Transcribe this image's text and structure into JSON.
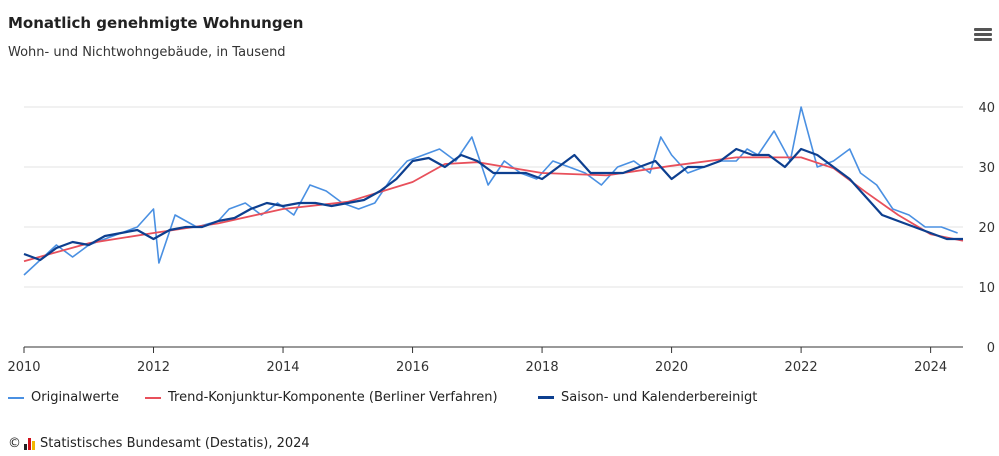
{
  "header": {
    "title": "Monatlich genehmigte Wohnungen",
    "subtitle": "Wohn- und Nichtwohngebäude, in Tausend"
  },
  "menu": {
    "icon": "hamburger-menu-icon"
  },
  "footer": {
    "copyright_symbol": "©",
    "logo_icon": "destatis-logo-icon",
    "text": "Statistisches Bundesamt (Destatis), 2024"
  },
  "chart_data": {
    "type": "line",
    "title": "Monatlich genehmigte Wohnungen",
    "subtitle": "Wohn- und Nichtwohngebäude, in Tausend",
    "xlim": [
      "2010-01",
      "2024-07"
    ],
    "ylim": [
      0,
      40
    ],
    "x_ticks": [
      "2010",
      "2012",
      "2014",
      "2016",
      "2018",
      "2020",
      "2022",
      "2024"
    ],
    "y_ticks": [
      0,
      10,
      20,
      30,
      40
    ],
    "y_axis_position": "right",
    "grid": "horizontal",
    "legend_position": "bottom",
    "colors": {
      "original": "#4a90e2",
      "trend": "#e8505b",
      "adjusted": "#0d3f8f"
    },
    "series": [
      {
        "name": "Originalwerte",
        "x": [
          "2010-01",
          "2010-07",
          "2010-10",
          "2011-01",
          "2011-04",
          "2011-07",
          "2011-10",
          "2012-01",
          "2012-02",
          "2012-05",
          "2012-09",
          "2013-01",
          "2013-03",
          "2013-06",
          "2013-09",
          "2013-12",
          "2014-03",
          "2014-06",
          "2014-09",
          "2014-12",
          "2015-03",
          "2015-06",
          "2015-09",
          "2015-12",
          "2016-03",
          "2016-06",
          "2016-09",
          "2016-12",
          "2017-03",
          "2017-06",
          "2017-09",
          "2017-12",
          "2018-03",
          "2018-06",
          "2018-09",
          "2018-12",
          "2019-03",
          "2019-06",
          "2019-09",
          "2019-11",
          "2020-01",
          "2020-04",
          "2020-07",
          "2020-10",
          "2021-01",
          "2021-03",
          "2021-05",
          "2021-08",
          "2021-11",
          "2022-01",
          "2022-04",
          "2022-07",
          "2022-10",
          "2022-12",
          "2023-03",
          "2023-06",
          "2023-09",
          "2023-12",
          "2024-03",
          "2024-06"
        ],
        "y": [
          12,
          17,
          15,
          17,
          18,
          19,
          20,
          23,
          14,
          22,
          20,
          21,
          23,
          24,
          22,
          24,
          22,
          27,
          26,
          24,
          23,
          24,
          28,
          31,
          32,
          33,
          31,
          35,
          27,
          31,
          29,
          28,
          31,
          30,
          29,
          27,
          30,
          31,
          29,
          35,
          32,
          29,
          30,
          31,
          31,
          33,
          32,
          36,
          31,
          40,
          30,
          31,
          33,
          29,
          27,
          23,
          22,
          20,
          20,
          19
        ]
      },
      {
        "name": "Trend-Konjunktur-Komponente (Berliner Verfahren)",
        "x": [
          "2010-01",
          "2011-01",
          "2012-01",
          "2013-01",
          "2014-01",
          "2015-01",
          "2016-01",
          "2016-07",
          "2017-01",
          "2018-01",
          "2019-01",
          "2020-01",
          "2021-01",
          "2022-01",
          "2022-07",
          "2023-01",
          "2023-07",
          "2024-01",
          "2024-07"
        ],
        "y": [
          14.3,
          17.3,
          19.0,
          20.6,
          23.0,
          24.2,
          27.5,
          30.5,
          30.8,
          29.0,
          28.6,
          30.2,
          31.6,
          31.6,
          29.8,
          25.8,
          22.0,
          18.8,
          17.7
        ]
      },
      {
        "name": "Saison- und Kalenderbereinigt",
        "x": [
          "2010-01",
          "2010-04",
          "2010-07",
          "2010-10",
          "2011-01",
          "2011-04",
          "2011-07",
          "2011-10",
          "2012-01",
          "2012-04",
          "2012-07",
          "2012-10",
          "2013-01",
          "2013-04",
          "2013-07",
          "2013-10",
          "2014-01",
          "2014-04",
          "2014-07",
          "2014-10",
          "2015-01",
          "2015-04",
          "2015-07",
          "2015-10",
          "2016-01",
          "2016-04",
          "2016-07",
          "2016-10",
          "2017-01",
          "2017-04",
          "2017-07",
          "2017-10",
          "2018-01",
          "2018-04",
          "2018-07",
          "2018-10",
          "2019-01",
          "2019-04",
          "2019-07",
          "2019-10",
          "2020-01",
          "2020-04",
          "2020-07",
          "2020-10",
          "2021-01",
          "2021-04",
          "2021-07",
          "2021-10",
          "2022-01",
          "2022-04",
          "2022-07",
          "2022-10",
          "2023-01",
          "2023-04",
          "2023-07",
          "2023-10",
          "2024-01",
          "2024-04",
          "2024-07"
        ],
        "y": [
          15.5,
          14.5,
          16.5,
          17.5,
          17,
          18.5,
          19,
          19.5,
          18,
          19.5,
          20,
          20,
          21,
          21.5,
          23,
          24,
          23.5,
          24,
          24,
          23.5,
          24,
          24.5,
          26,
          28,
          31,
          31.5,
          30,
          32,
          31,
          29,
          29,
          29,
          28,
          30,
          32,
          29,
          29,
          29,
          30,
          31,
          28,
          30,
          30,
          31,
          33,
          32,
          32,
          30,
          33,
          32,
          30,
          28,
          25,
          22,
          21,
          20,
          19,
          18,
          18
        ]
      }
    ]
  }
}
